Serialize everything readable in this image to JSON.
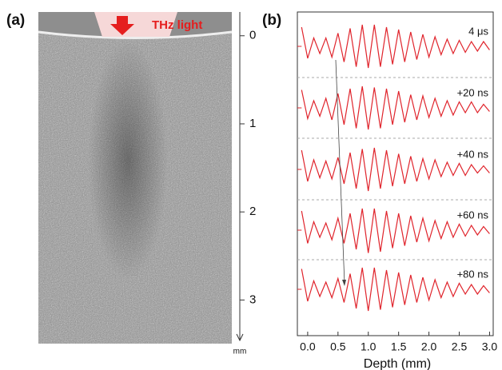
{
  "panel_a": {
    "label": "(a)",
    "light_label": "THz light",
    "scale": {
      "ticks": [
        0,
        1,
        2,
        3
      ],
      "unit": "mm",
      "lim": [
        -0.27,
        3.45
      ]
    }
  },
  "chart_data": {
    "type": "line",
    "panel_label": "(b)",
    "x_label": "Depth (mm)",
    "xlim": [
      -0.17,
      3.06
    ],
    "ylim": [
      -1,
      1
    ],
    "xticks": [
      {
        "value": 0,
        "label": "0.0"
      },
      0.5,
      {
        "value": 1,
        "label": "1.0"
      },
      1.5,
      {
        "value": 2,
        "label": "2.0"
      },
      2.5,
      {
        "value": 3,
        "label": "3.0"
      }
    ],
    "x": [
      -0.1,
      0,
      0.1,
      0.2,
      0.3,
      0.4,
      0.5,
      0.6,
      0.7,
      0.8,
      0.9,
      1,
      1.1,
      1.2,
      1.3,
      1.4,
      1.5,
      1.6,
      1.7,
      1.8,
      1.9,
      2,
      2.1,
      2.2,
      2.3,
      2.4,
      2.5,
      2.6,
      2.7,
      2.8,
      2.9,
      3
    ],
    "series": [
      {
        "name": "4 μs",
        "color": "#e0242c",
        "values": [
          0.8,
          -0.5,
          0.35,
          -0.3,
          0.35,
          -0.45,
          0.55,
          -0.65,
          0.75,
          -0.85,
          0.9,
          -0.9,
          0.9,
          -0.85,
          0.8,
          -0.75,
          0.7,
          -0.65,
          0.6,
          -0.55,
          0.5,
          -0.45,
          0.4,
          -0.35,
          0.3,
          -0.3,
          0.25,
          -0.25,
          0.2,
          -0.2,
          0.2,
          -0.15
        ]
      },
      {
        "name": "+20 ns",
        "color": "#e0242c",
        "values": [
          0.75,
          -0.45,
          0.3,
          -0.35,
          0.4,
          -0.5,
          0.6,
          -0.7,
          0.8,
          -0.85,
          0.9,
          -0.9,
          0.85,
          -0.85,
          0.8,
          -0.7,
          0.7,
          -0.6,
          0.55,
          -0.5,
          0.5,
          -0.4,
          0.4,
          -0.35,
          0.3,
          -0.3,
          0.25,
          -0.2,
          0.25,
          -0.2,
          0.15,
          -0.15
        ]
      },
      {
        "name": "+40 ns",
        "color": "#e0242c",
        "values": [
          0.8,
          -0.5,
          0.4,
          -0.35,
          0.35,
          -0.4,
          0.5,
          -0.6,
          0.7,
          -0.8,
          0.85,
          -0.9,
          0.9,
          -0.8,
          0.8,
          -0.7,
          0.65,
          -0.6,
          0.55,
          -0.5,
          0.45,
          -0.4,
          0.4,
          -0.3,
          0.3,
          -0.25,
          0.25,
          -0.25,
          0.2,
          -0.15,
          0.15,
          -0.15
        ]
      },
      {
        "name": "+60 ns",
        "color": "#e0242c",
        "values": [
          0.8,
          -0.55,
          0.35,
          -0.3,
          0.3,
          -0.4,
          0.5,
          -0.55,
          0.7,
          -0.8,
          0.9,
          -0.95,
          0.9,
          -0.9,
          0.8,
          -0.75,
          0.7,
          -0.65,
          0.6,
          -0.5,
          0.5,
          -0.45,
          0.4,
          -0.35,
          0.35,
          -0.3,
          0.25,
          -0.25,
          0.2,
          -0.2,
          0.15,
          -0.15
        ]
      },
      {
        "name": "+80 ns",
        "color": "#e0242c",
        "values": [
          0.85,
          -0.5,
          0.35,
          -0.3,
          0.3,
          -0.35,
          0.45,
          -0.55,
          0.65,
          -0.8,
          0.9,
          -0.9,
          0.9,
          -0.85,
          0.8,
          -0.75,
          0.7,
          -0.65,
          0.6,
          -0.55,
          0.5,
          -0.45,
          0.4,
          -0.35,
          0.3,
          -0.3,
          0.25,
          -0.2,
          0.2,
          -0.2,
          0.15,
          -0.15
        ]
      }
    ]
  }
}
